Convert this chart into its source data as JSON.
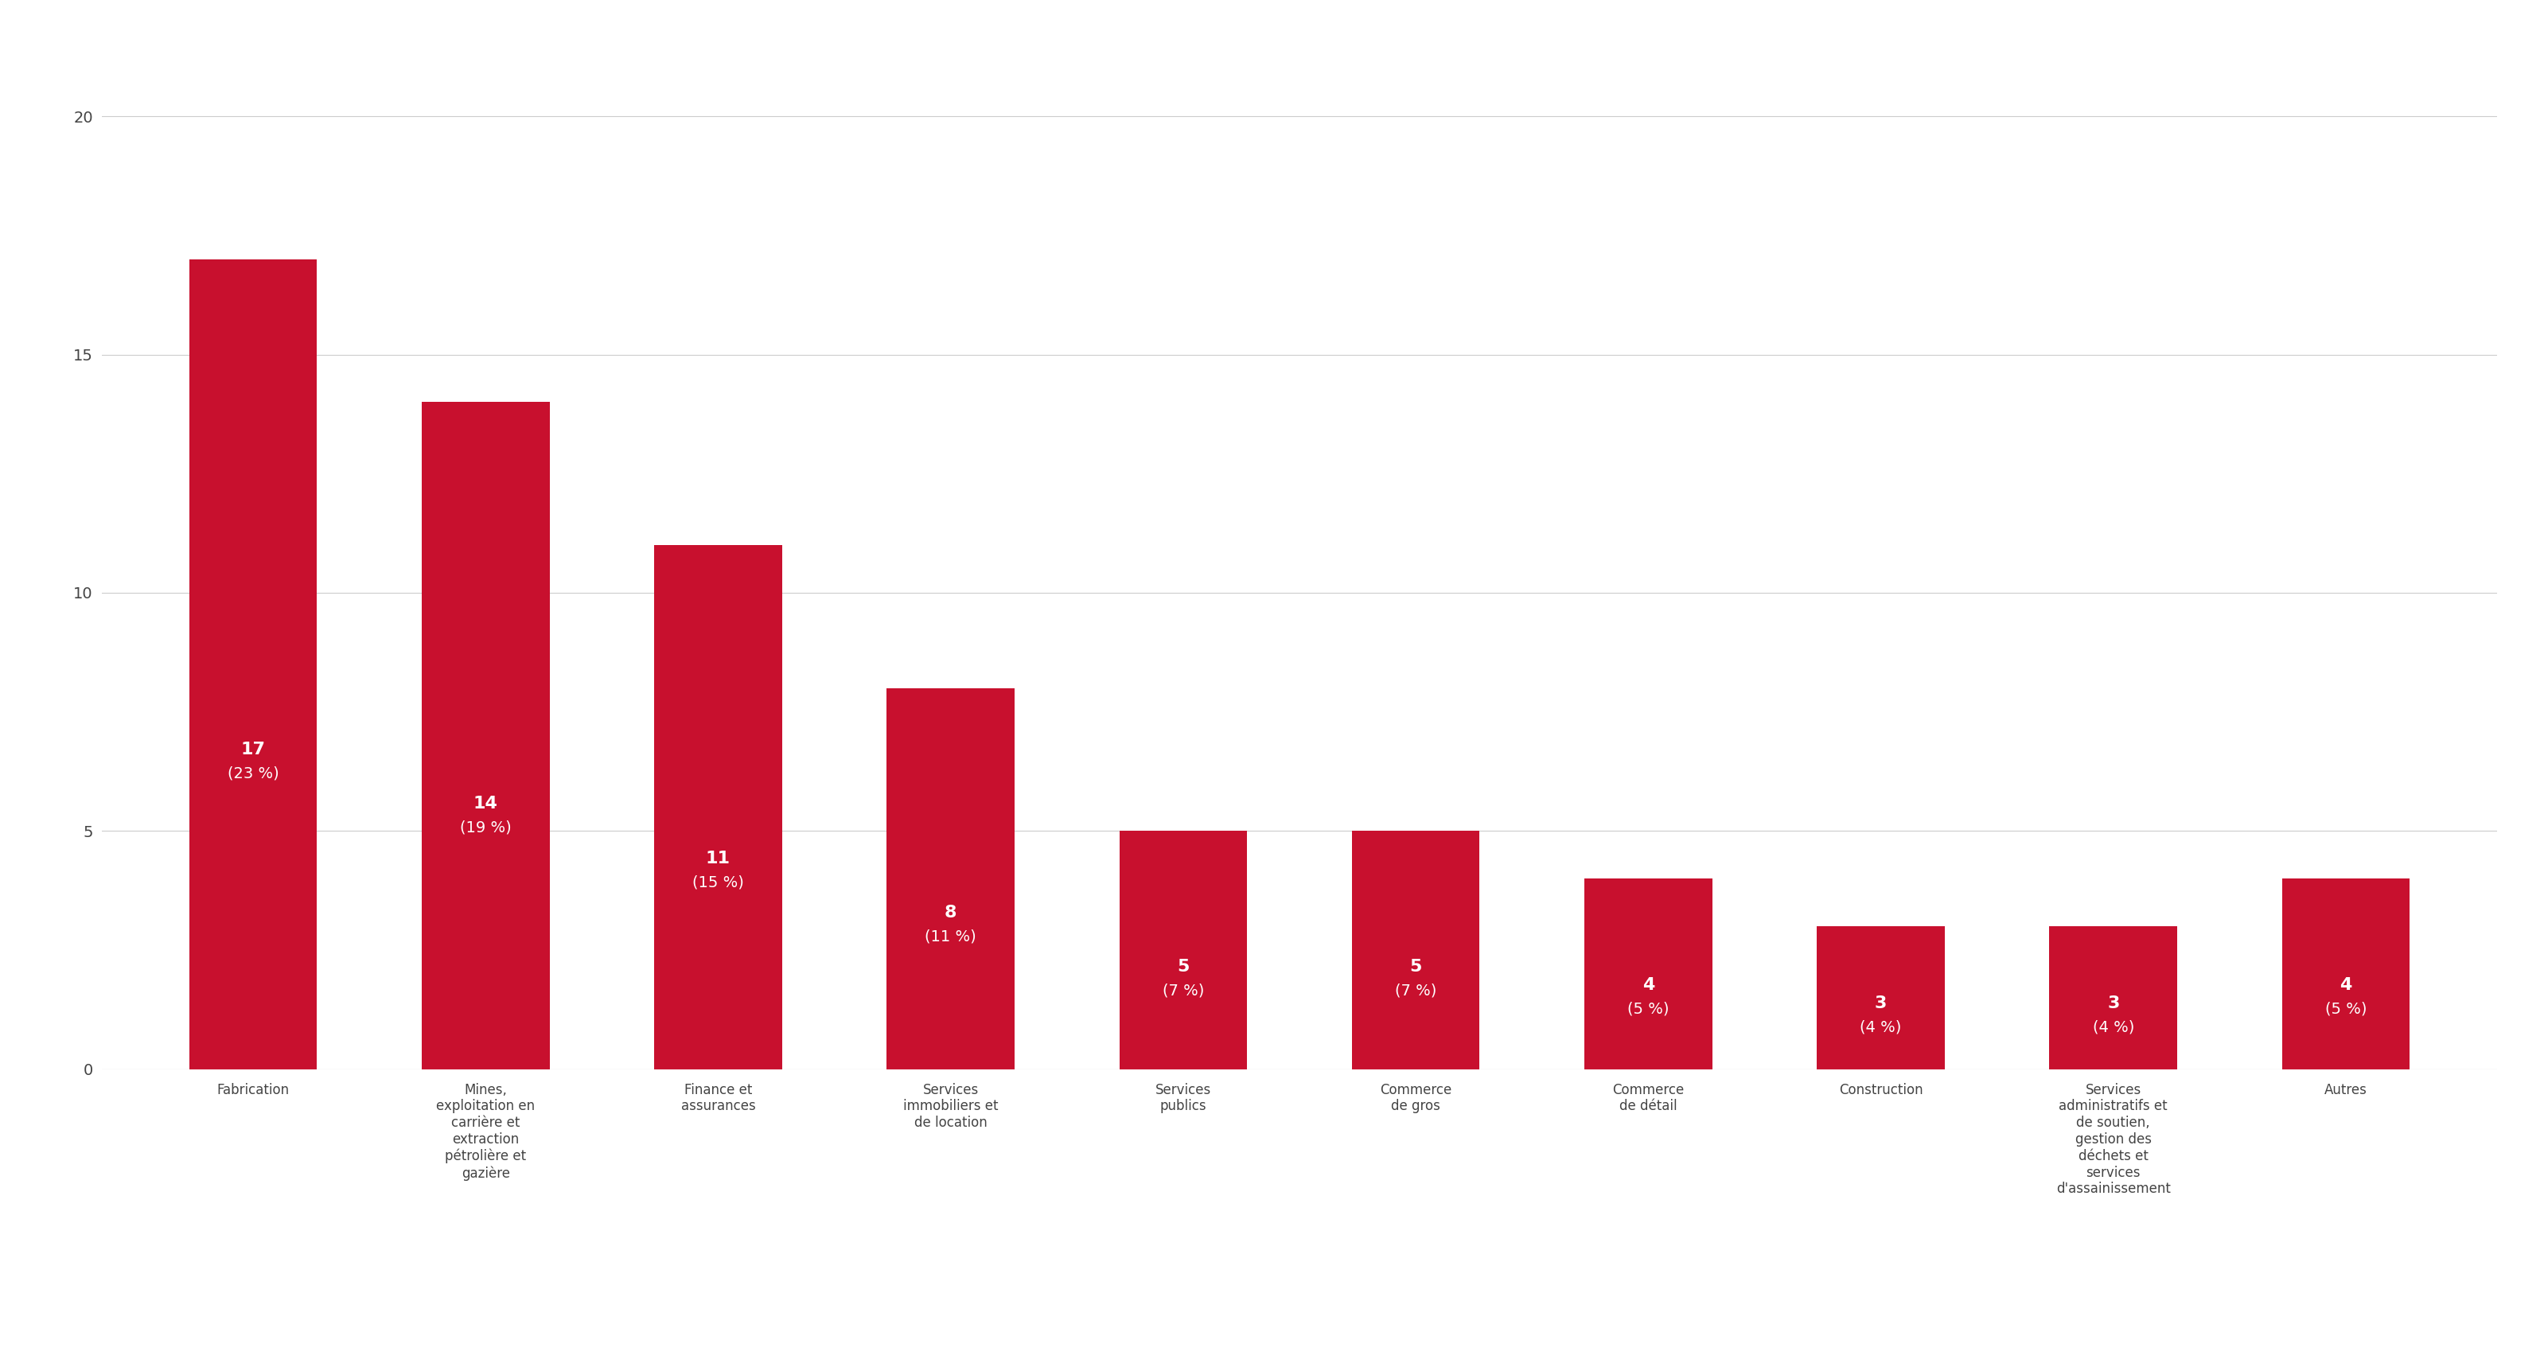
{
  "categories": [
    "Fabrication",
    "Mines,\nexploitation en\ncarrière et\nextraction\npétrolière et\ngazière",
    "Finance et\nassurances",
    "Services\nimmobiliers et\nde location",
    "Services\npublics",
    "Commerce\nde gros",
    "Commerce\nde détail",
    "Construction",
    "Services\nadministratifs et\nde soutien,\ngestion des\ndéchets et\nservices\nd'assainissement",
    "Autres"
  ],
  "values": [
    17,
    14,
    11,
    8,
    5,
    5,
    4,
    3,
    3,
    4
  ],
  "percentages": [
    "23 %",
    "19 %",
    "15 %",
    "11 %",
    "7 %",
    "7 %",
    "5 %",
    "4 %",
    "4 %",
    "5 %"
  ],
  "bar_color": "#c8102e",
  "background_color": "#ffffff",
  "yticks": [
    0,
    5,
    10,
    15,
    20
  ],
  "ylim": [
    0,
    21
  ],
  "grid_color": "#cccccc",
  "text_color": "#ffffff",
  "label_color": "#444444",
  "tick_color": "#444444",
  "value_fontsize": 16,
  "pct_fontsize": 14,
  "xlabel_fontsize": 12
}
